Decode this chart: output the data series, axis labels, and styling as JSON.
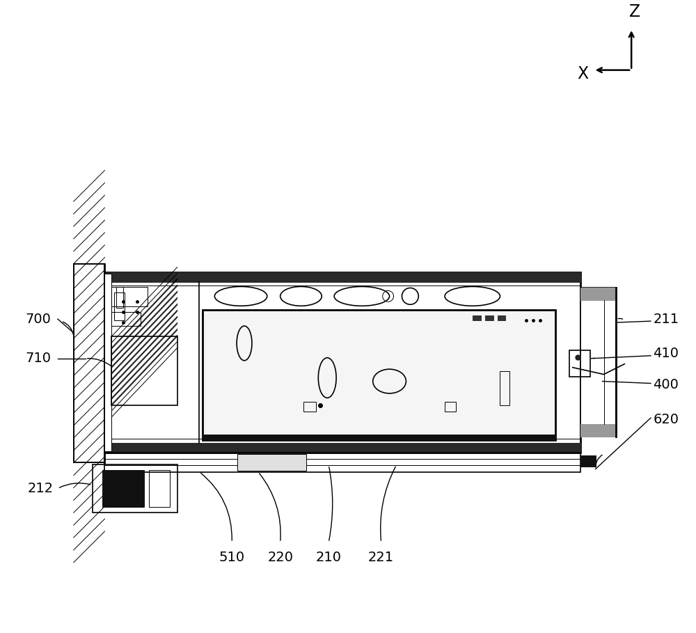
{
  "bg_color": "#ffffff",
  "line_color": "#000000",
  "fig_width": 10.0,
  "fig_height": 9.09,
  "dpi": 100
}
